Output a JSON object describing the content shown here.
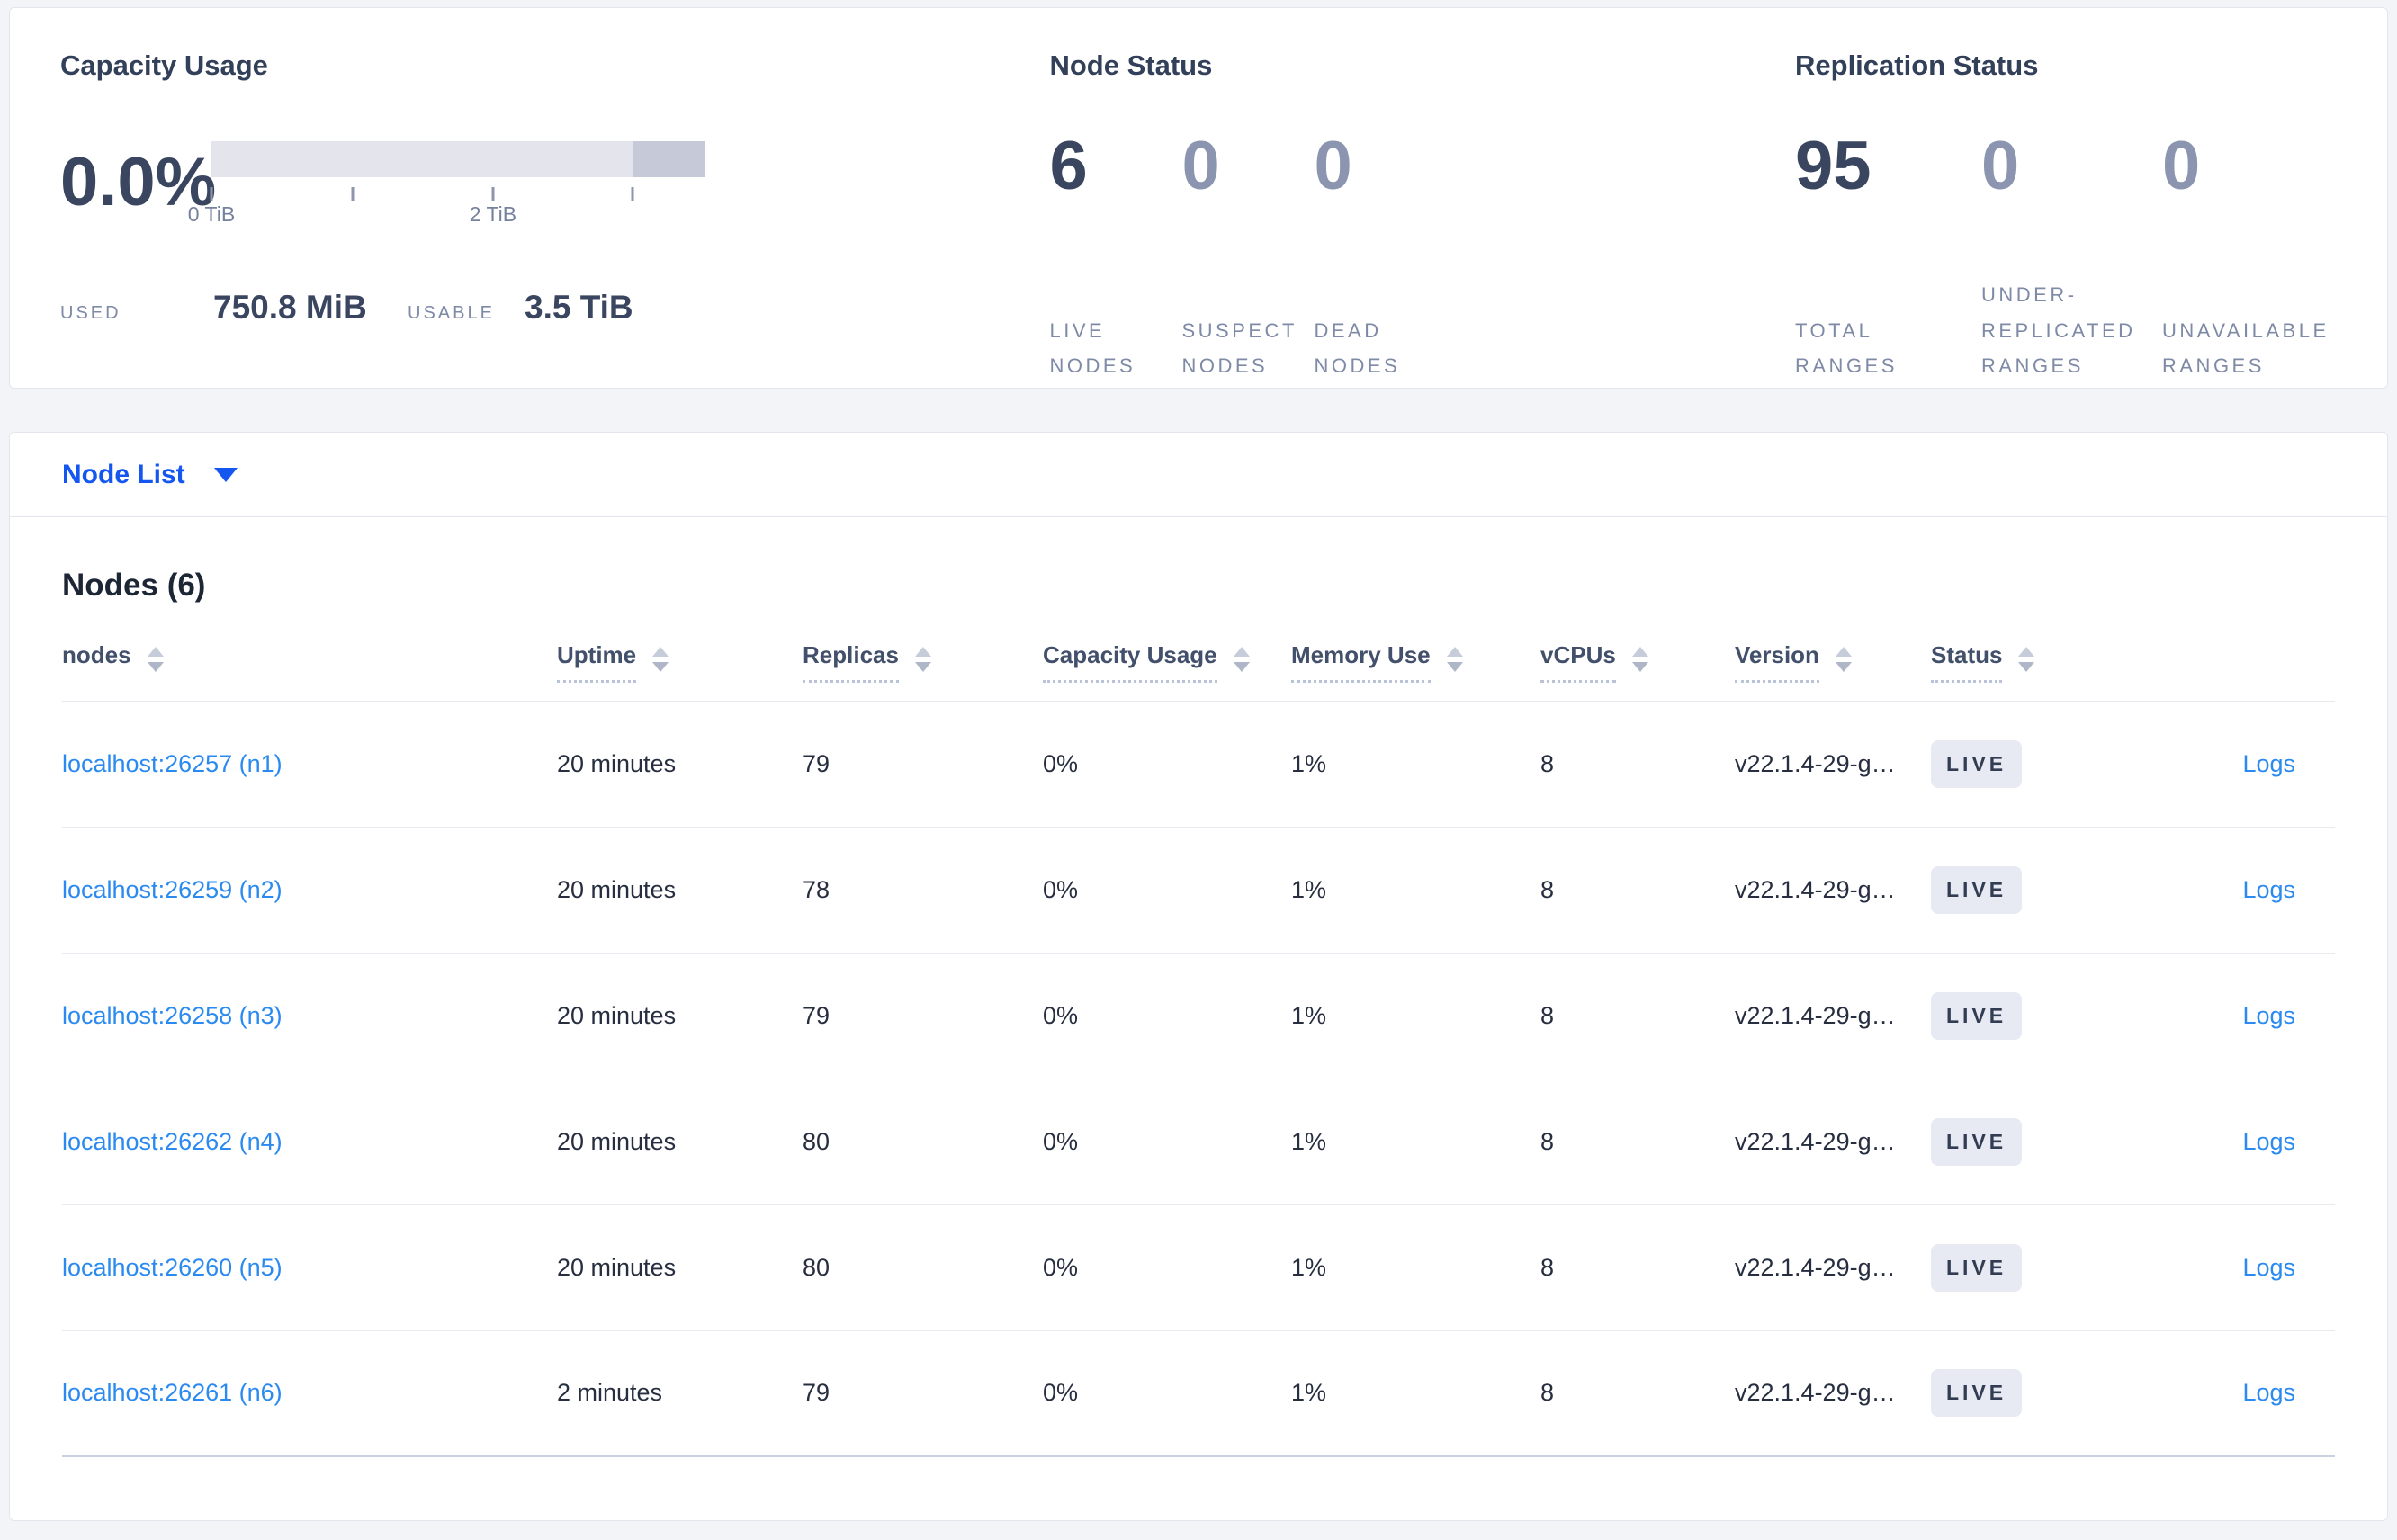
{
  "summary": {
    "capacity": {
      "title": "Capacity Usage",
      "percent": "0.0%",
      "used_label": "USED",
      "used_value": "750.8 MiB",
      "usable_label": "USABLE",
      "usable_value": "3.5 TiB",
      "axis_tick_positions_pct": [
        0,
        28.6,
        57,
        85.2
      ],
      "axis_labels": [
        {
          "text": "0 TiB",
          "pos_pct": 0
        },
        {
          "text": "2 TiB",
          "pos_pct": 57
        }
      ],
      "bar": {
        "light_color": "#e3e4ec",
        "dark_color": "#c6c9d7",
        "dark_from_pct": 85.2
      }
    },
    "node_status": {
      "title": "Node Status",
      "stats": [
        {
          "value": "6",
          "label": "LIVE NODES",
          "dim": false
        },
        {
          "value": "0",
          "label": "SUSPECT NODES",
          "dim": true
        },
        {
          "value": "0",
          "label": "DEAD NODES",
          "dim": true
        }
      ]
    },
    "replication": {
      "title": "Replication Status",
      "stats": [
        {
          "value": "95",
          "label": "TOTAL RANGES",
          "dim": false
        },
        {
          "value": "0",
          "label": "UNDER-REPLICATED RANGES",
          "dim": true
        },
        {
          "value": "0",
          "label": "UNAVAILABLE RANGES",
          "dim": true
        }
      ]
    }
  },
  "view_selector": {
    "label": "Node List",
    "icon": "caret-down-icon"
  },
  "table": {
    "title": "Nodes (6)",
    "columns": [
      {
        "label": "nodes",
        "dashed": false
      },
      {
        "label": "Uptime",
        "dashed": true
      },
      {
        "label": "Replicas",
        "dashed": true
      },
      {
        "label": "Capacity Usage",
        "dashed": true
      },
      {
        "label": "Memory Use",
        "dashed": true
      },
      {
        "label": "vCPUs",
        "dashed": true
      },
      {
        "label": "Version",
        "dashed": true
      },
      {
        "label": "Status",
        "dashed": true
      },
      {
        "label": "",
        "dashed": false
      }
    ],
    "rows": [
      {
        "node": "localhost:26257 (n1)",
        "uptime": "20 minutes",
        "replicas": "79",
        "capacity": "0%",
        "memory": "1%",
        "vcpus": "8",
        "version": "v22.1.4-29-g…",
        "status": "LIVE",
        "logs": "Logs"
      },
      {
        "node": "localhost:26259 (n2)",
        "uptime": "20 minutes",
        "replicas": "78",
        "capacity": "0%",
        "memory": "1%",
        "vcpus": "8",
        "version": "v22.1.4-29-g…",
        "status": "LIVE",
        "logs": "Logs"
      },
      {
        "node": "localhost:26258 (n3)",
        "uptime": "20 minutes",
        "replicas": "79",
        "capacity": "0%",
        "memory": "1%",
        "vcpus": "8",
        "version": "v22.1.4-29-g…",
        "status": "LIVE",
        "logs": "Logs"
      },
      {
        "node": "localhost:26262 (n4)",
        "uptime": "20 minutes",
        "replicas": "80",
        "capacity": "0%",
        "memory": "1%",
        "vcpus": "8",
        "version": "v22.1.4-29-g…",
        "status": "LIVE",
        "logs": "Logs"
      },
      {
        "node": "localhost:26260 (n5)",
        "uptime": "20 minutes",
        "replicas": "80",
        "capacity": "0%",
        "memory": "1%",
        "vcpus": "8",
        "version": "v22.1.4-29-g…",
        "status": "LIVE",
        "logs": "Logs"
      },
      {
        "node": "localhost:26261 (n6)",
        "uptime": "2 minutes",
        "replicas": "79",
        "capacity": "0%",
        "memory": "1%",
        "vcpus": "8",
        "version": "v22.1.4-29-g…",
        "status": "LIVE",
        "logs": "Logs"
      }
    ]
  },
  "colors": {
    "page_background": "#f3f4f8",
    "card_border": "#e3e6ee",
    "accent_blue": "#1457f0",
    "link_blue": "#2a8af0",
    "slate_dark": "#3a4660",
    "slate_dim": "#8b95b0",
    "label_gray": "#7e8aa6",
    "badge_background": "#e7eaf2",
    "bar_light": "#e3e4ec",
    "bar_dark": "#c6c9d7"
  }
}
